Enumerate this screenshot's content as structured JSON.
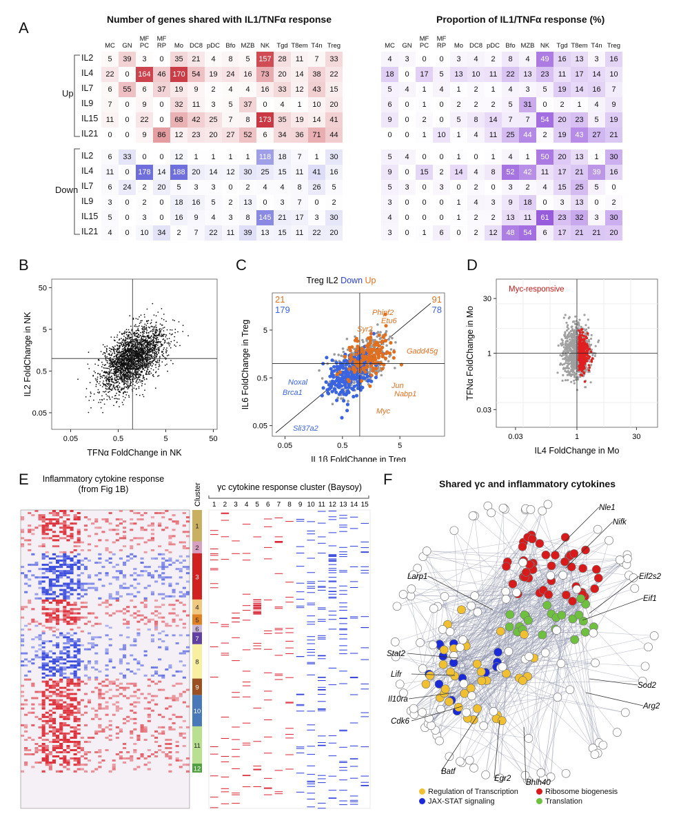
{
  "panel_letters": {
    "a": "A",
    "b": "B",
    "c": "C",
    "d": "D",
    "e": "E",
    "f": "F"
  },
  "colors": {
    "up": "#d8303a",
    "down": "#2a3fd6",
    "purple": "#8a5cd6",
    "orange": "#e07020",
    "gray": "#9a9a9a",
    "gold": "#f0c030",
    "green": "#70c040",
    "red": "#d81a1a",
    "blue": "#1a2ad8"
  },
  "panelA": {
    "title_left": "Number of genes shared with IL1/TNFα  response",
    "title_right": "Proportion of IL1/TNFα response (%)",
    "columns": [
      "MC",
      "GN",
      "MF PC",
      "MF RP",
      "Mo",
      "DC8",
      "pDC",
      "Bfo",
      "MZB",
      "NK",
      "Tgd",
      "T8em",
      "T4n",
      "Treg"
    ],
    "groups": [
      "Up",
      "Down"
    ],
    "row_labels": [
      "IL2",
      "IL4",
      "IL7",
      "IL9",
      "IL15",
      "IL21"
    ],
    "counts_up": [
      [
        5,
        39,
        3,
        0,
        35,
        21,
        4,
        8,
        5,
        157,
        28,
        11,
        7,
        33
      ],
      [
        22,
        0,
        164,
        46,
        170,
        54,
        19,
        24,
        16,
        73,
        20,
        14,
        38,
        22
      ],
      [
        6,
        55,
        6,
        37,
        19,
        9,
        2,
        4,
        4,
        16,
        33,
        12,
        43,
        15
      ],
      [
        7,
        0,
        9,
        0,
        32,
        11,
        3,
        5,
        37,
        0,
        4,
        1,
        10,
        20
      ],
      [
        11,
        0,
        22,
        0,
        68,
        42,
        25,
        7,
        8,
        173,
        35,
        19,
        14,
        41
      ],
      [
        0,
        0,
        9,
        86,
        12,
        23,
        20,
        27,
        52,
        6,
        34,
        36,
        71,
        44
      ]
    ],
    "counts_down": [
      [
        6,
        33,
        0,
        0,
        12,
        1,
        1,
        1,
        1,
        118,
        18,
        7,
        1,
        30
      ],
      [
        11,
        0,
        178,
        14,
        188,
        20,
        14,
        12,
        30,
        25,
        15,
        11,
        41,
        16
      ],
      [
        6,
        24,
        2,
        20,
        5,
        3,
        3,
        0,
        2,
        4,
        4,
        8,
        26,
        5
      ],
      [
        3,
        0,
        2,
        0,
        18,
        16,
        5,
        2,
        13,
        0,
        3,
        7,
        0,
        2
      ],
      [
        5,
        0,
        3,
        0,
        16,
        9,
        4,
        3,
        8,
        145,
        21,
        17,
        3,
        30
      ],
      [
        4,
        0,
        10,
        34,
        2,
        7,
        22,
        11,
        39,
        13,
        15,
        11,
        22,
        20
      ]
    ],
    "prop_up": [
      [
        4,
        3,
        0,
        0,
        3,
        4,
        2,
        8,
        4,
        49,
        16,
        13,
        3,
        16
      ],
      [
        18,
        0,
        17,
        5,
        13,
        10,
        11,
        22,
        13,
        23,
        11,
        17,
        14,
        10
      ],
      [
        5,
        4,
        1,
        4,
        1,
        2,
        1,
        4,
        3,
        5,
        19,
        14,
        16,
        7
      ],
      [
        6,
        0,
        1,
        0,
        2,
        2,
        2,
        5,
        31,
        0,
        2,
        1,
        4,
        9
      ],
      [
        9,
        0,
        2,
        0,
        5,
        8,
        14,
        7,
        7,
        54,
        20,
        23,
        5,
        19
      ],
      [
        0,
        0,
        1,
        10,
        1,
        4,
        11,
        25,
        44,
        2,
        19,
        43,
        27,
        21
      ]
    ],
    "prop_down": [
      [
        5,
        4,
        0,
        0,
        1,
        0,
        1,
        4,
        1,
        50,
        20,
        13,
        1,
        30
      ],
      [
        9,
        0,
        15,
        2,
        14,
        4,
        8,
        52,
        42,
        11,
        17,
        21,
        39,
        16
      ],
      [
        5,
        3,
        0,
        3,
        0,
        2,
        0,
        3,
        2,
        4,
        15,
        25,
        5,
        0
      ],
      [
        3,
        0,
        0,
        0,
        1,
        4,
        3,
        9,
        18,
        0,
        3,
        13,
        0,
        2
      ],
      [
        4,
        0,
        0,
        0,
        1,
        2,
        2,
        13,
        11,
        61,
        23,
        32,
        3,
        30
      ],
      [
        3,
        0,
        1,
        6,
        0,
        2,
        12,
        48,
        54,
        6,
        17,
        21,
        21,
        20
      ]
    ]
  },
  "panelB": {
    "chart_data": {
      "type": "scatter",
      "xlabel": "TFNα FoldChange in NK",
      "ylabel": "IL2 FoldChange in NK",
      "x_ticks": [
        "0.05",
        "0.5",
        "5",
        "50"
      ],
      "y_ticks": [
        "50",
        "5",
        "0.5",
        "0.05"
      ],
      "xlim": [
        0.02,
        60
      ],
      "ylim": [
        0.02,
        80
      ],
      "crosshair": [
        1,
        1
      ]
    }
  },
  "panelC": {
    "title_prefix": "Treg IL2 ",
    "title_down": "Down",
    "title_up": "Up",
    "counts": {
      "top_left_up": "21",
      "top_left_down": "179",
      "top_right_up": "91",
      "top_right_down": "78"
    },
    "chart_data": {
      "type": "scatter",
      "xlabel": "IL1β FoldChange in Treg",
      "ylabel": "IL6 FoldChange in Treg",
      "x_ticks": [
        "0.05",
        "0.5",
        "5"
      ],
      "y_ticks": [
        "5",
        "0.5",
        "0.05"
      ],
      "xlim": [
        0.03,
        30
      ],
      "ylim": [
        0.03,
        30
      ],
      "labels_up": [
        "Phipf2",
        "Etu6",
        "Syr2",
        "Gadd45g",
        "Jun",
        "Nabp1",
        "Myc"
      ],
      "labels_down": [
        "Noxal",
        "Brca1",
        "Sli37a2"
      ]
    }
  },
  "panelD": {
    "legend": "Myc-responsive",
    "chart_data": {
      "type": "scatter",
      "xlabel": "IL4 FoldChange in Mo",
      "ylabel": "TFNα FoldChange in Mo",
      "x_ticks": [
        "0.03",
        "1",
        "30"
      ],
      "y_ticks": [
        "30",
        "1",
        "0.03"
      ],
      "xlim": [
        0.01,
        100
      ],
      "ylim": [
        0.01,
        100
      ]
    }
  },
  "panelE": {
    "left_title_1": "Inflammatory cytokine response",
    "left_title_2": "(from Fig 1B)",
    "cluster_header": "Cluster",
    "right_title": "γc cytokine response cluster (Baysoy)",
    "right_columns": [
      "1",
      "2",
      "3",
      "4",
      "5",
      "6",
      "7",
      "8",
      "9",
      "10",
      "11",
      "12",
      "13",
      "14",
      "15"
    ],
    "clusters": [
      {
        "label": "1",
        "color": "#c8b060",
        "frac": 0.105
      },
      {
        "label": "2",
        "color": "#d8a0c0",
        "frac": 0.04
      },
      {
        "label": "3",
        "color": "#d02020",
        "frac": 0.155
      },
      {
        "label": "4",
        "color": "#f0c880",
        "frac": 0.05
      },
      {
        "label": "5",
        "color": "#e08020",
        "frac": 0.035
      },
      {
        "label": "6",
        "color": "#c8b8d8",
        "frac": 0.025
      },
      {
        "label": "7",
        "color": "#6040a0",
        "frac": 0.04
      },
      {
        "label": "8",
        "color": "#f8f0a0",
        "frac": 0.115
      },
      {
        "label": "9",
        "color": "#9a5020",
        "frac": 0.055
      },
      {
        "label": "10",
        "color": "#4878b8",
        "frac": 0.105
      },
      {
        "label": "11",
        "color": "#b8e090",
        "frac": 0.125
      },
      {
        "label": "12",
        "color": "#50a040",
        "frac": 0.03
      }
    ]
  },
  "panelF": {
    "title": "Shared γc and inflammatory cytokines",
    "gene_labels": [
      "Nle1",
      "Nifk",
      "Larp1",
      "Eif2s2",
      "Eif1",
      "Stat2",
      "Sod2",
      "Lifr",
      "Arg2",
      "Il10ra",
      "Cdk6",
      "Batf",
      "Egr2",
      "Bhlh40"
    ],
    "legend": [
      "Regulation of Transcription",
      "Ribosome biogenesis",
      "JAX-STAT signaling",
      "Translation"
    ]
  }
}
